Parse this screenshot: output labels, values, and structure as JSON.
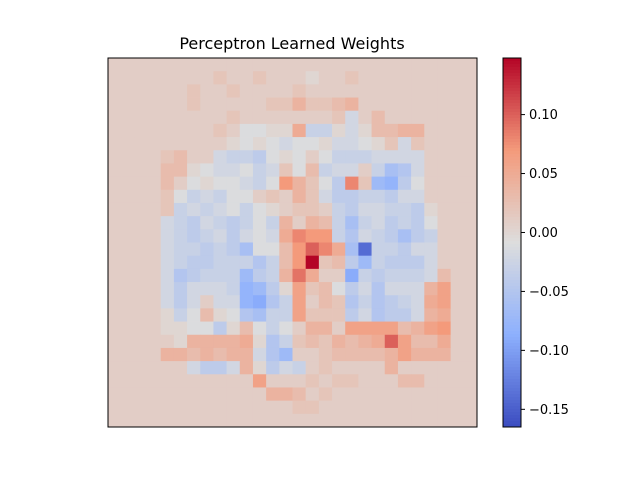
{
  "chart_data": {
    "type": "heatmap",
    "title": "Perceptron Learned Weights",
    "colormap": "coolwarm",
    "grid": false,
    "axes_ticks_visible": false,
    "value_range": [
      -0.165,
      0.148
    ],
    "colorbar": {
      "position": "right",
      "ticks": [
        0.1,
        0.05,
        0.0,
        -0.05,
        -0.1,
        -0.15
      ],
      "tick_labels": [
        "0.10",
        "0.05",
        "0.00",
        "−0.05",
        "−0.10",
        "−0.15"
      ]
    },
    "rows": 28,
    "cols": 28,
    "values": [
      [
        0.01,
        0.01,
        0.01,
        0.01,
        0.01,
        0.01,
        0.01,
        0.01,
        0.01,
        0.01,
        0.01,
        0.01,
        0.01,
        0.01,
        0.01,
        0.01,
        0.01,
        0.01,
        0.01,
        0.01,
        0.01,
        0.01,
        0.01,
        0.01,
        0.01,
        0.01,
        0.01,
        0.01
      ],
      [
        0.01,
        0.01,
        0.01,
        0.01,
        0.01,
        0.01,
        0.01,
        0.01,
        0.02,
        0.01,
        0.01,
        0.02,
        0.01,
        0.01,
        0.01,
        0.0,
        0.01,
        0.01,
        0.02,
        0.01,
        0.01,
        0.01,
        0.01,
        0.01,
        0.01,
        0.01,
        0.01,
        0.01
      ],
      [
        0.01,
        0.01,
        0.01,
        0.01,
        0.01,
        0.01,
        0.02,
        0.01,
        0.01,
        0.02,
        0.01,
        0.01,
        0.01,
        0.01,
        0.02,
        0.01,
        0.01,
        0.01,
        0.01,
        0.01,
        0.01,
        0.01,
        0.01,
        0.01,
        0.01,
        0.01,
        0.01,
        0.01
      ],
      [
        0.01,
        0.01,
        0.01,
        0.01,
        0.01,
        0.01,
        0.02,
        0.01,
        0.01,
        0.01,
        0.01,
        0.01,
        0.02,
        0.02,
        0.04,
        0.02,
        0.02,
        0.03,
        0.04,
        0.01,
        0.01,
        0.01,
        0.01,
        0.01,
        0.01,
        0.01,
        0.01,
        0.01
      ],
      [
        0.01,
        0.01,
        0.01,
        0.01,
        0.01,
        0.01,
        0.01,
        0.01,
        0.01,
        0.02,
        0.01,
        0.01,
        0.01,
        0.01,
        0.01,
        0.01,
        0.01,
        0.02,
        -0.02,
        0.01,
        0.03,
        0.01,
        0.01,
        0.01,
        0.01,
        0.01,
        0.01,
        0.01
      ],
      [
        0.01,
        0.01,
        0.01,
        0.01,
        0.01,
        0.01,
        0.01,
        0.01,
        0.02,
        0.01,
        -0.01,
        -0.01,
        0.0,
        0.0,
        0.05,
        -0.03,
        -0.03,
        0.0,
        -0.02,
        0.0,
        0.03,
        0.03,
        0.04,
        0.04,
        0.01,
        0.01,
        0.01,
        0.01
      ],
      [
        0.01,
        0.01,
        0.01,
        0.01,
        0.01,
        0.01,
        0.01,
        0.01,
        0.01,
        0.0,
        -0.01,
        0.0,
        -0.01,
        -0.02,
        -0.01,
        -0.01,
        0.0,
        -0.02,
        -0.02,
        -0.01,
        0.0,
        0.02,
        -0.02,
        0.02,
        0.01,
        0.01,
        0.01,
        0.01
      ],
      [
        0.01,
        0.01,
        0.01,
        0.01,
        0.02,
        0.03,
        0.01,
        0.01,
        -0.02,
        -0.03,
        -0.03,
        -0.04,
        -0.01,
        0.0,
        -0.01,
        0.01,
        -0.01,
        -0.03,
        -0.03,
        -0.03,
        -0.02,
        -0.02,
        -0.02,
        -0.02,
        0.01,
        0.01,
        0.01,
        0.01
      ],
      [
        0.01,
        0.01,
        0.01,
        0.01,
        0.03,
        0.03,
        0.0,
        -0.01,
        -0.02,
        -0.02,
        -0.01,
        -0.03,
        -0.02,
        0.02,
        -0.01,
        0.03,
        -0.03,
        -0.02,
        -0.02,
        0.01,
        -0.03,
        -0.06,
        -0.05,
        -0.02,
        0.01,
        0.01,
        0.01,
        0.01
      ],
      [
        0.01,
        0.01,
        0.01,
        0.01,
        0.03,
        0.01,
        -0.01,
        0.0,
        -0.01,
        -0.01,
        -0.02,
        -0.03,
        -0.01,
        0.07,
        0.04,
        0.02,
        -0.01,
        -0.04,
        0.08,
        0.02,
        -0.07,
        -0.08,
        -0.04,
        -0.01,
        0.01,
        0.01,
        0.01,
        0.01
      ],
      [
        0.01,
        0.01,
        0.01,
        0.01,
        0.02,
        -0.01,
        -0.03,
        -0.02,
        -0.03,
        -0.01,
        -0.01,
        0.01,
        0.02,
        0.01,
        0.04,
        0.02,
        -0.02,
        -0.04,
        -0.04,
        -0.03,
        -0.03,
        -0.04,
        -0.02,
        -0.02,
        0.01,
        0.01,
        0.01,
        0.01
      ],
      [
        0.01,
        0.01,
        0.01,
        0.01,
        0.02,
        -0.03,
        -0.02,
        -0.03,
        -0.02,
        -0.01,
        -0.03,
        -0.01,
        0.0,
        0.01,
        0.02,
        0.02,
        0.01,
        -0.03,
        -0.04,
        -0.02,
        -0.02,
        -0.03,
        -0.03,
        -0.04,
        0.0,
        0.01,
        0.01,
        0.01
      ],
      [
        0.01,
        0.01,
        0.01,
        0.01,
        -0.02,
        -0.03,
        -0.04,
        -0.02,
        -0.03,
        -0.04,
        -0.03,
        -0.01,
        -0.03,
        0.04,
        0.01,
        0.04,
        0.03,
        -0.03,
        -0.06,
        -0.03,
        -0.02,
        -0.04,
        -0.03,
        -0.04,
        -0.01,
        0.01,
        0.01,
        0.01
      ],
      [
        0.01,
        0.01,
        0.01,
        0.01,
        -0.02,
        -0.03,
        -0.04,
        -0.03,
        -0.02,
        -0.04,
        -0.02,
        -0.01,
        -0.02,
        0.05,
        0.08,
        0.07,
        0.07,
        -0.03,
        -0.05,
        -0.02,
        -0.03,
        -0.04,
        -0.06,
        -0.04,
        -0.03,
        0.01,
        0.01,
        0.01
      ],
      [
        0.01,
        0.01,
        0.01,
        0.01,
        -0.02,
        -0.03,
        -0.03,
        -0.04,
        -0.03,
        -0.04,
        -0.06,
        -0.01,
        -0.01,
        0.03,
        0.07,
        0.1,
        0.08,
        0.05,
        -0.06,
        -0.14,
        -0.03,
        -0.03,
        -0.04,
        -0.02,
        -0.02,
        0.01,
        0.01,
        0.01
      ],
      [
        0.01,
        0.01,
        0.01,
        0.01,
        -0.02,
        -0.03,
        -0.04,
        -0.04,
        -0.03,
        -0.03,
        -0.03,
        -0.05,
        -0.03,
        0.03,
        0.07,
        0.148,
        0.02,
        0.03,
        -0.04,
        -0.07,
        -0.03,
        -0.04,
        -0.04,
        -0.04,
        -0.02,
        0.01,
        0.01,
        0.01
      ],
      [
        0.01,
        0.01,
        0.01,
        0.01,
        -0.02,
        -0.05,
        -0.04,
        -0.03,
        -0.03,
        -0.03,
        -0.07,
        -0.04,
        -0.03,
        0.04,
        0.09,
        0.05,
        0.01,
        0.01,
        -0.09,
        -0.03,
        -0.04,
        -0.03,
        -0.03,
        -0.03,
        -0.02,
        0.03,
        0.01,
        0.01
      ],
      [
        0.01,
        0.01,
        0.01,
        0.01,
        -0.02,
        -0.04,
        -0.02,
        -0.02,
        -0.02,
        -0.03,
        -0.08,
        -0.07,
        -0.04,
        0.0,
        0.06,
        0.02,
        0.03,
        -0.01,
        -0.04,
        -0.02,
        -0.05,
        -0.02,
        -0.02,
        -0.02,
        0.04,
        0.06,
        0.01,
        0.01
      ],
      [
        0.01,
        0.01,
        0.01,
        0.01,
        -0.02,
        -0.04,
        -0.02,
        0.01,
        -0.02,
        -0.02,
        -0.08,
        -0.09,
        -0.05,
        -0.03,
        0.06,
        0.01,
        0.03,
        0.02,
        -0.05,
        -0.03,
        -0.05,
        -0.04,
        -0.03,
        -0.02,
        0.05,
        0.06,
        0.01,
        0.01
      ],
      [
        0.01,
        0.01,
        0.01,
        0.01,
        0.0,
        -0.03,
        -0.01,
        0.03,
        0.0,
        -0.01,
        -0.05,
        -0.06,
        -0.03,
        -0.03,
        0.06,
        0.02,
        0.02,
        0.02,
        -0.04,
        -0.02,
        -0.05,
        -0.04,
        -0.04,
        -0.02,
        0.04,
        0.05,
        0.01,
        0.01
      ],
      [
        0.01,
        0.01,
        0.01,
        0.01,
        0.0,
        0.0,
        -0.01,
        -0.01,
        -0.04,
        0.0,
        0.03,
        -0.01,
        -0.03,
        -0.01,
        0.01,
        0.04,
        0.04,
        0.01,
        0.06,
        0.06,
        0.06,
        0.06,
        0.03,
        0.04,
        0.06,
        0.07,
        0.01,
        0.01
      ],
      [
        0.01,
        0.01,
        0.01,
        0.01,
        0.01,
        0.0,
        0.04,
        0.04,
        0.04,
        0.04,
        0.05,
        0.0,
        -0.05,
        -0.03,
        0.02,
        0.03,
        0.02,
        0.04,
        0.03,
        0.04,
        0.05,
        0.1,
        0.06,
        0.03,
        0.03,
        0.05,
        0.01,
        0.01
      ],
      [
        0.01,
        0.01,
        0.01,
        0.01,
        0.04,
        0.04,
        0.03,
        0.04,
        0.03,
        0.04,
        0.04,
        -0.02,
        -0.05,
        -0.07,
        0.01,
        0.01,
        0.02,
        0.03,
        0.03,
        0.03,
        0.03,
        0.04,
        0.06,
        0.04,
        0.04,
        0.04,
        0.01,
        0.01
      ],
      [
        0.01,
        0.01,
        0.01,
        0.01,
        0.01,
        0.01,
        -0.02,
        -0.04,
        -0.04,
        -0.02,
        0.04,
        0.0,
        -0.04,
        -0.02,
        -0.03,
        0.01,
        0.02,
        0.01,
        0.01,
        0.01,
        0.01,
        0.04,
        0.01,
        0.01,
        0.01,
        0.01,
        0.01,
        0.01
      ],
      [
        0.01,
        0.01,
        0.01,
        0.01,
        0.01,
        0.01,
        0.01,
        0.01,
        0.01,
        0.01,
        0.01,
        0.06,
        0.01,
        0.01,
        0.01,
        0.02,
        0.01,
        0.02,
        0.02,
        0.01,
        0.01,
        0.01,
        0.03,
        0.03,
        0.01,
        0.01,
        0.01,
        0.01
      ],
      [
        0.01,
        0.01,
        0.01,
        0.01,
        0.01,
        0.01,
        0.01,
        0.01,
        0.01,
        0.01,
        0.01,
        0.01,
        0.04,
        0.04,
        0.03,
        0.01,
        0.02,
        0.01,
        0.01,
        0.01,
        0.01,
        0.01,
        0.01,
        0.01,
        0.01,
        0.01,
        0.01,
        0.01
      ],
      [
        0.01,
        0.01,
        0.01,
        0.01,
        0.01,
        0.01,
        0.01,
        0.01,
        0.01,
        0.01,
        0.01,
        0.01,
        0.01,
        0.01,
        0.02,
        0.02,
        0.01,
        0.01,
        0.01,
        0.01,
        0.01,
        0.01,
        0.01,
        0.01,
        0.01,
        0.01,
        0.01,
        0.01
      ],
      [
        0.01,
        0.01,
        0.01,
        0.01,
        0.01,
        0.01,
        0.01,
        0.01,
        0.01,
        0.01,
        0.01,
        0.01,
        0.01,
        0.01,
        0.01,
        0.01,
        0.01,
        0.01,
        0.01,
        0.01,
        0.01,
        0.01,
        0.01,
        0.01,
        0.01,
        0.01,
        0.01,
        0.01
      ]
    ]
  }
}
